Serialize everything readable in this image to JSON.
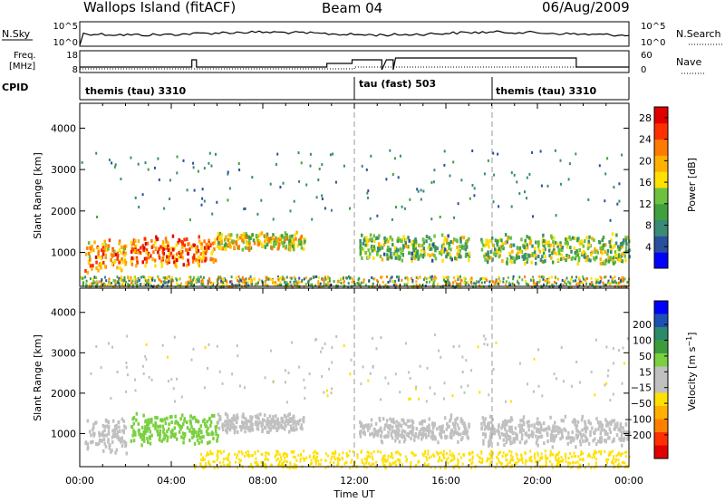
{
  "header": {
    "station": "Wallops Island (fitACF)",
    "beam": "Beam 04",
    "date": "06/Aug/2009"
  },
  "noise_panel": {
    "left_label": "N.Sky",
    "right_label": "N.Search",
    "left_ticks": [
      "10^5",
      "10^0"
    ],
    "right_ticks": [
      "10^5",
      "10^0"
    ]
  },
  "freq_panel": {
    "left_label_line1": "Freq.",
    "left_label_line2": "[MHz]",
    "right_label": "Nave",
    "left_ticks": [
      "18",
      "8"
    ],
    "right_ticks": [
      "60",
      "0"
    ]
  },
  "cpid_panel": {
    "label": "CPID",
    "segments": [
      {
        "label": "themis (tau) 3310",
        "start_hour": 0
      },
      {
        "label": "tau (fast) 503",
        "start_hour": 12
      },
      {
        "label": "themis (tau) 3310",
        "start_hour": 18
      }
    ]
  },
  "colors": {
    "power_scale": [
      "#0000ff",
      "#2a4f9c",
      "#3a8a78",
      "#3fa03f",
      "#6cc23f",
      "#ffe000",
      "#ffb000",
      "#ff7a00",
      "#ff3000",
      "#e00000"
    ],
    "velocity_scale": [
      "#0000ff",
      "#1e50b4",
      "#2a8a6a",
      "#3c9c3c",
      "#7ad040",
      "#c0c0c0",
      "#c0c0c0",
      "#ffe000",
      "#ffb000",
      "#ff8000",
      "#ff3000",
      "#e00000"
    ],
    "gray_dash": "#999999"
  },
  "chart_data": [
    {
      "type": "heatmap",
      "name": "power",
      "xlabel": "Time UT",
      "ylabel": "Slant Range [km]",
      "xlim": [
        0,
        24
      ],
      "ylim": [
        180,
        4600
      ],
      "x_tick_labels": [
        "00:00",
        "04:00",
        "08:00",
        "12:00",
        "16:00",
        "20:00",
        "00:00"
      ],
      "y_tick_labels": [
        "1000",
        "2000",
        "3000",
        "4000"
      ],
      "colorbar": {
        "label": "Power [dB]",
        "tick_labels": [
          "4",
          "8",
          "12",
          "16",
          "20",
          "24",
          "28"
        ],
        "range": [
          0,
          30
        ]
      },
      "echo_bands": [
        {
          "start_hour": 0.2,
          "end_hour": 2.0,
          "center_km": 950,
          "width_km": 450,
          "power_db": 21
        },
        {
          "start_hour": 2.2,
          "end_hour": 6.0,
          "center_km": 1050,
          "width_km": 400,
          "power_db": 23
        },
        {
          "start_hour": 6.0,
          "end_hour": 9.8,
          "center_km": 1300,
          "width_km": 250,
          "power_db": 17
        },
        {
          "start_hour": 12.2,
          "end_hour": 17.0,
          "center_km": 1150,
          "width_km": 350,
          "power_db": 12
        },
        {
          "start_hour": 17.5,
          "end_hour": 24.0,
          "center_km": 1100,
          "width_km": 400,
          "power_db": 13
        }
      ],
      "near_range_band": {
        "start_hour": 0,
        "end_hour": 24,
        "range_km": [
          180,
          450
        ],
        "power_db": 14
      },
      "dashed_lines_hour": [
        12,
        18
      ]
    },
    {
      "type": "heatmap",
      "name": "velocity",
      "xlabel": "Time UT",
      "ylabel": "Slant Range [km]",
      "xlim": [
        0,
        24
      ],
      "ylim": [
        180,
        4600
      ],
      "x_tick_labels": [
        "00:00",
        "04:00",
        "08:00",
        "12:00",
        "16:00",
        "20:00",
        "00:00"
      ],
      "y_tick_labels": [
        "1000",
        "2000",
        "3000",
        "4000"
      ],
      "colorbar": {
        "label": "Velocity [m s^-1]",
        "tick_labels": [
          "200",
          "100",
          "50",
          "15",
          "-15",
          "-50",
          "-100",
          "-200"
        ]
      },
      "echo_bands": [
        {
          "start_hour": 0.2,
          "end_hour": 2.0,
          "center_km": 1000,
          "width_km": 500,
          "velocity": 0
        },
        {
          "start_hour": 2.2,
          "end_hour": 6.0,
          "center_km": 1150,
          "width_km": 400,
          "velocity": 60
        },
        {
          "start_hour": 6.0,
          "end_hour": 9.8,
          "center_km": 1300,
          "width_km": 250,
          "velocity": 40
        },
        {
          "start_hour": 12.2,
          "end_hour": 17.0,
          "center_km": 1150,
          "width_km": 350,
          "velocity": 0
        },
        {
          "start_hour": 17.5,
          "end_hour": 24.0,
          "center_km": 1100,
          "width_km": 400,
          "velocity": 0
        }
      ],
      "near_range_band": {
        "start_hour": 5,
        "end_hour": 24,
        "range_km": [
          180,
          600
        ],
        "velocity": -40
      },
      "dashed_lines_hour": [
        12,
        18
      ]
    }
  ]
}
